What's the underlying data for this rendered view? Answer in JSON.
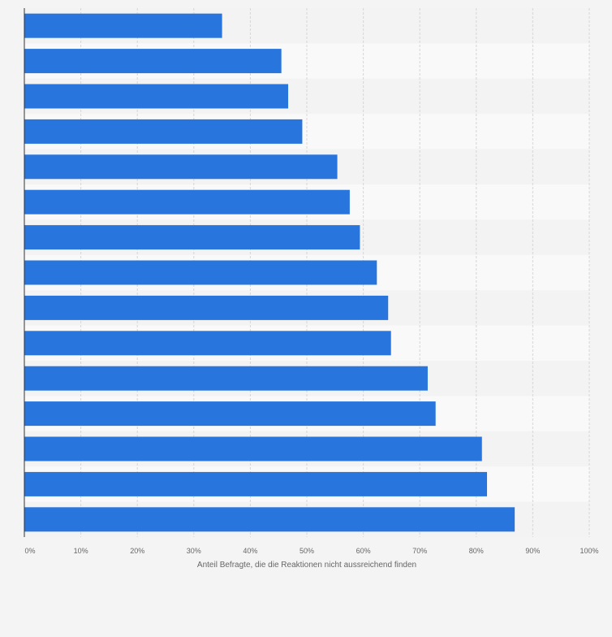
{
  "chart_data": {
    "type": "bar",
    "orientation": "horizontal",
    "title": "",
    "xlabel": "Anteil Befragte, die die Reaktionen nicht aussreichend finden",
    "ylabel": "",
    "xlim": [
      0,
      100
    ],
    "x_ticks": [
      "0%",
      "10%",
      "20%",
      "30%",
      "40%",
      "50%",
      "60%",
      "70%",
      "80%",
      "90%",
      "100%"
    ],
    "categories": [
      "",
      "",
      "",
      "",
      "",
      "",
      "",
      "",
      "",
      "",
      "",
      "",
      "",
      "",
      ""
    ],
    "values": [
      35,
      45.5,
      46.7,
      49.2,
      55.4,
      57.6,
      59.4,
      62.4,
      64.4,
      64.9,
      71.4,
      72.8,
      81,
      81.9,
      86.8
    ],
    "grid": true,
    "legend": "none",
    "colors": {
      "bar": "#2876dd",
      "background": "#f4f4f5",
      "band_light": "#f9f9f9",
      "band_dark": "#f3f3f4",
      "grid": "#d6d6d6",
      "tick_text": "#666666"
    }
  }
}
